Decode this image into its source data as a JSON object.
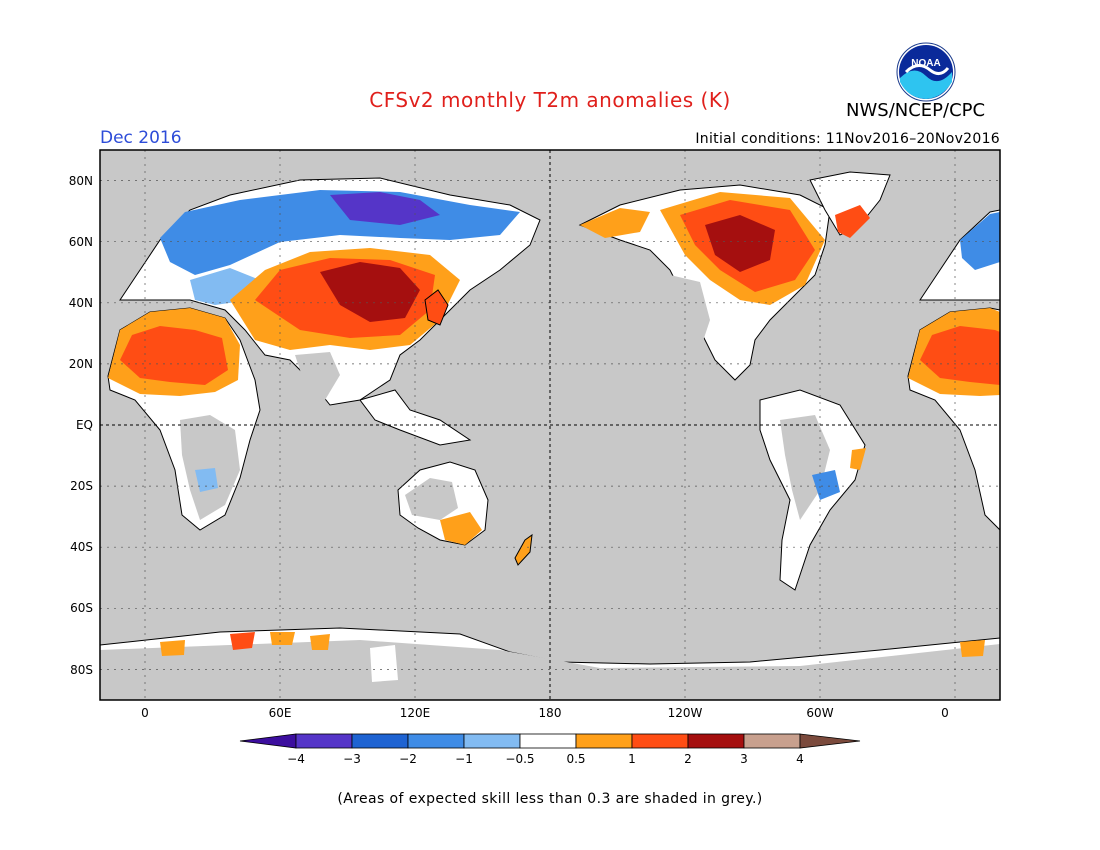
{
  "header": {
    "title": "CFSv2 monthly T2m anomalies (K)",
    "organization": "NWS/NCEP/CPC",
    "logo_text": "NOAA",
    "target_month": "Dec 2016",
    "initial_conditions": "Initial conditions: 11Nov2016–20Nov2016"
  },
  "map": {
    "lat_labels": [
      "80N",
      "60N",
      "40N",
      "20N",
      "EQ",
      "20S",
      "40S",
      "60S",
      "80S"
    ],
    "lon_labels": [
      "0",
      "60E",
      "120E",
      "180",
      "120W",
      "60W",
      "0"
    ],
    "lon_range": [
      -20,
      380
    ],
    "lat_range": [
      -90,
      90
    ],
    "colors": {
      "ocean": "#c8c8c8",
      "land_no_signal": "#ffffff",
      "coastline": "#000000"
    }
  },
  "colorbar": {
    "tick_labels": [
      "−4",
      "−3",
      "−2",
      "−1",
      "−0.5",
      "0.5",
      "1",
      "2",
      "3",
      "4"
    ],
    "colors": [
      "#3c0e9e",
      "#5535c8",
      "#1e63d2",
      "#3f8ce6",
      "#82bbf2",
      "#ffffff",
      "#ffa01a",
      "#ff4d14",
      "#a50f0f",
      "#c8a08e",
      "#7b4a3c"
    ]
  },
  "footnote": "(Areas of expected skill less than 0.3 are shaded in grey.)"
}
